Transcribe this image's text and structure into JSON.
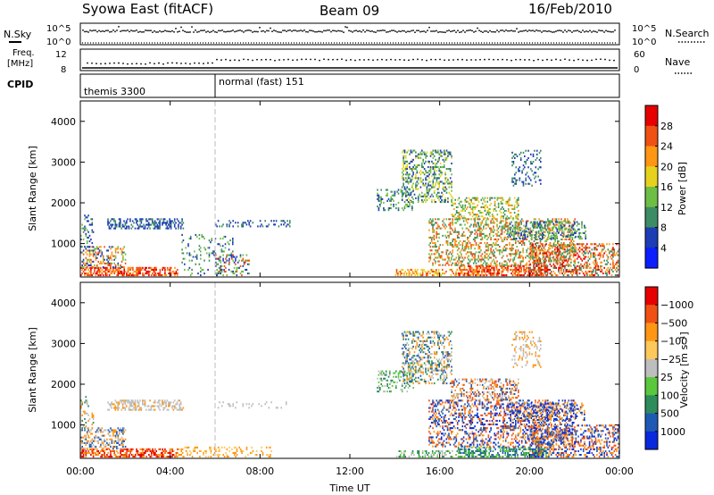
{
  "header": {
    "station": "Syowa East (fitACF)",
    "beam": "Beam 09",
    "date": "16/Feb/2010"
  },
  "strips": {
    "nsky_label": "N.Sky",
    "nsearch_label": "N.Search",
    "nsky_ticks": [
      "10^5",
      "10^0"
    ],
    "nsearch_ticks": [
      "10^5",
      "10^0"
    ],
    "freq_label_top": "Freq.",
    "freq_label_bot": "[MHz]",
    "freq_ticks": [
      "12",
      "8"
    ],
    "nave_label": "Nave",
    "nave_ticks": [
      "60",
      "0"
    ],
    "cpid_label": "CPID",
    "cpid_segments": [
      {
        "name": "themis 3300",
        "start_hour": 0
      },
      {
        "name": "normal (fast) 151",
        "start_hour": 6
      }
    ]
  },
  "chart_data": [
    {
      "type": "heatmap",
      "name": "power",
      "ylabel": "Slant Range [km]",
      "ylim": [
        180,
        4500
      ],
      "yticks": [
        1000,
        2000,
        3000,
        4000
      ],
      "xlim_hours": [
        0,
        24
      ],
      "colorbar": {
        "label": "Power [dB]",
        "ticks": [
          "4",
          "8",
          "12",
          "16",
          "20",
          "24",
          "28"
        ],
        "colors": [
          "#0a1eff",
          "#1e3cb4",
          "#3c8c64",
          "#6ebe46",
          "#e6d21e",
          "#ff9614",
          "#f05014",
          "#e60000"
        ]
      },
      "patches": [
        {
          "h0": 0.0,
          "h1": 4.3,
          "r0": 200,
          "r1": 400,
          "p": 0.55,
          "c": [
            6,
            7,
            5
          ]
        },
        {
          "h0": 0.0,
          "h1": 2.0,
          "r0": 400,
          "r1": 900,
          "p": 0.35,
          "c": [
            3,
            6,
            5,
            1
          ]
        },
        {
          "h0": 0.0,
          "h1": 0.6,
          "r0": 900,
          "r1": 1700,
          "p": 0.2,
          "c": [
            1,
            2,
            3
          ]
        },
        {
          "h0": 1.2,
          "h1": 4.6,
          "r0": 1350,
          "r1": 1600,
          "p": 0.45,
          "c": [
            1,
            2,
            1
          ]
        },
        {
          "h0": 4.5,
          "h1": 6.8,
          "r0": 200,
          "r1": 1200,
          "p": 0.12,
          "c": [
            1,
            2,
            3
          ]
        },
        {
          "h0": 6.0,
          "h1": 9.3,
          "r0": 1400,
          "r1": 1550,
          "p": 0.18,
          "c": [
            1,
            2
          ]
        },
        {
          "h0": 6.0,
          "h1": 7.5,
          "r0": 200,
          "r1": 700,
          "p": 0.25,
          "c": [
            1,
            3,
            6
          ]
        },
        {
          "h0": 13.2,
          "h1": 14.8,
          "r0": 1800,
          "r1": 2300,
          "p": 0.3,
          "c": [
            1,
            2,
            3
          ]
        },
        {
          "h0": 14.3,
          "h1": 16.5,
          "r0": 2000,
          "r1": 3300,
          "p": 0.35,
          "c": [
            1,
            2,
            3,
            4
          ]
        },
        {
          "h0": 14.0,
          "h1": 18.0,
          "r0": 200,
          "r1": 350,
          "p": 0.35,
          "c": [
            5,
            6,
            4
          ]
        },
        {
          "h0": 16.8,
          "h1": 20.8,
          "r0": 200,
          "r1": 450,
          "p": 0.55,
          "c": [
            6,
            7,
            5
          ]
        },
        {
          "h0": 15.5,
          "h1": 22.0,
          "r0": 450,
          "r1": 1600,
          "p": 0.35,
          "c": [
            2,
            3,
            5,
            6
          ]
        },
        {
          "h0": 16.5,
          "h1": 19.5,
          "r0": 1600,
          "r1": 2100,
          "p": 0.35,
          "c": [
            2,
            3,
            4,
            5
          ]
        },
        {
          "h0": 19.0,
          "h1": 22.5,
          "r0": 1100,
          "r1": 1550,
          "p": 0.35,
          "c": [
            1,
            2,
            3
          ]
        },
        {
          "h0": 20.0,
          "h1": 24.0,
          "r0": 200,
          "r1": 1000,
          "p": 0.4,
          "c": [
            2,
            5,
            6,
            7
          ]
        },
        {
          "h0": 19.2,
          "h1": 20.5,
          "r0": 2400,
          "r1": 3300,
          "p": 0.2,
          "c": [
            1,
            2
          ]
        }
      ]
    },
    {
      "type": "heatmap",
      "name": "velocity",
      "ylabel": "Slant Range [km]",
      "ylim": [
        180,
        4500
      ],
      "yticks": [
        1000,
        2000,
        3000,
        4000
      ],
      "xlim_hours": [
        0,
        24
      ],
      "xticks": [
        "00:00",
        "04:00",
        "08:00",
        "12:00",
        "16:00",
        "20:00",
        "00:00"
      ],
      "xlabel": "Time UT",
      "colorbar": {
        "label": "Velocity [m s⁻¹]",
        "ticks": [
          "1000",
          "500",
          "100",
          "25",
          "−25",
          "−100",
          "−500",
          "−1000"
        ],
        "colors": [
          "#0a28dc",
          "#1e5ab4",
          "#2d8c5a",
          "#5ac83c",
          "#bebebe",
          "#ffc85a",
          "#ff9614",
          "#f05014",
          "#e60000"
        ]
      },
      "patches": [
        {
          "h0": 0.0,
          "h1": 4.3,
          "r0": 200,
          "r1": 400,
          "p": 0.55,
          "c": [
            7,
            8,
            6
          ]
        },
        {
          "h0": 0.0,
          "h1": 2.0,
          "r0": 400,
          "r1": 900,
          "p": 0.35,
          "c": [
            6,
            4,
            1
          ]
        },
        {
          "h0": 0.0,
          "h1": 0.6,
          "r0": 900,
          "r1": 1700,
          "p": 0.2,
          "c": [
            4,
            2,
            6
          ]
        },
        {
          "h0": 1.2,
          "h1": 4.6,
          "r0": 1350,
          "r1": 1600,
          "p": 0.4,
          "c": [
            4,
            4,
            6
          ]
        },
        {
          "h0": 4.3,
          "h1": 8.5,
          "r0": 200,
          "r1": 450,
          "p": 0.25,
          "c": [
            5,
            6
          ]
        },
        {
          "h0": 6.0,
          "h1": 9.3,
          "r0": 1400,
          "r1": 1550,
          "p": 0.18,
          "c": [
            4,
            4
          ]
        },
        {
          "h0": 13.2,
          "h1": 14.8,
          "r0": 1800,
          "r1": 2300,
          "p": 0.3,
          "c": [
            4,
            2,
            3
          ]
        },
        {
          "h0": 14.3,
          "h1": 16.5,
          "r0": 2000,
          "r1": 3300,
          "p": 0.35,
          "c": [
            1,
            2,
            6,
            4
          ]
        },
        {
          "h0": 14.0,
          "h1": 18.0,
          "r0": 200,
          "r1": 350,
          "p": 0.3,
          "c": [
            3,
            2,
            4
          ]
        },
        {
          "h0": 16.8,
          "h1": 20.8,
          "r0": 200,
          "r1": 450,
          "p": 0.5,
          "c": [
            1,
            2,
            3
          ]
        },
        {
          "h0": 15.5,
          "h1": 22.0,
          "r0": 450,
          "r1": 1600,
          "p": 0.35,
          "c": [
            0,
            1,
            6,
            7
          ]
        },
        {
          "h0": 16.5,
          "h1": 19.5,
          "r0": 1600,
          "r1": 2100,
          "p": 0.35,
          "c": [
            6,
            7,
            1,
            4
          ]
        },
        {
          "h0": 19.0,
          "h1": 22.5,
          "r0": 1100,
          "r1": 1550,
          "p": 0.3,
          "c": [
            0,
            1,
            6
          ]
        },
        {
          "h0": 20.0,
          "h1": 24.0,
          "r0": 200,
          "r1": 1000,
          "p": 0.4,
          "c": [
            1,
            6,
            7,
            0
          ]
        },
        {
          "h0": 19.2,
          "h1": 20.5,
          "r0": 2400,
          "r1": 3300,
          "p": 0.2,
          "c": [
            6,
            4
          ]
        }
      ]
    }
  ]
}
